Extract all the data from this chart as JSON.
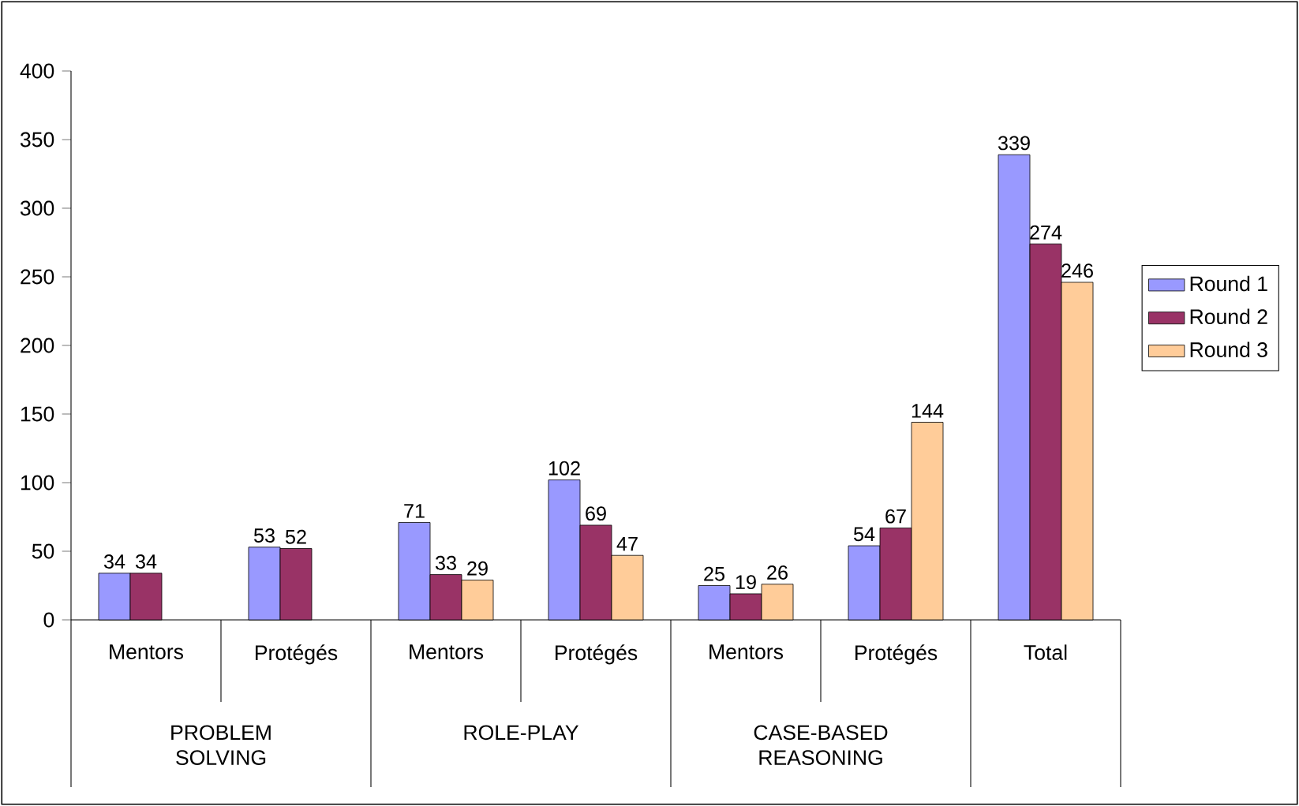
{
  "chart_data": {
    "type": "bar",
    "categories": [
      "Mentors",
      "Protégés",
      "Mentors",
      "Protégés",
      "Mentors",
      "Protégés",
      "Total"
    ],
    "series": [
      {
        "name": "Round 1",
        "color": "#9999ff",
        "values": [
          34,
          53,
          71,
          102,
          25,
          54,
          339
        ]
      },
      {
        "name": "Round 2",
        "color": "#993366",
        "values": [
          34,
          52,
          33,
          69,
          19,
          67,
          274
        ]
      },
      {
        "name": "Round 3",
        "color": "#ffcc99",
        "values": [
          null,
          null,
          29,
          47,
          26,
          144,
          246
        ]
      }
    ],
    "annotations": [
      "PROBLEM SOLVING",
      "ROLE-PLAY",
      "CASE-BASED REASONING"
    ],
    "ylim": [
      0,
      400
    ],
    "yticks": [
      0,
      50,
      100,
      150,
      200,
      250,
      300,
      350,
      400
    ],
    "data_labels": true,
    "legend": "right",
    "grid": false
  }
}
